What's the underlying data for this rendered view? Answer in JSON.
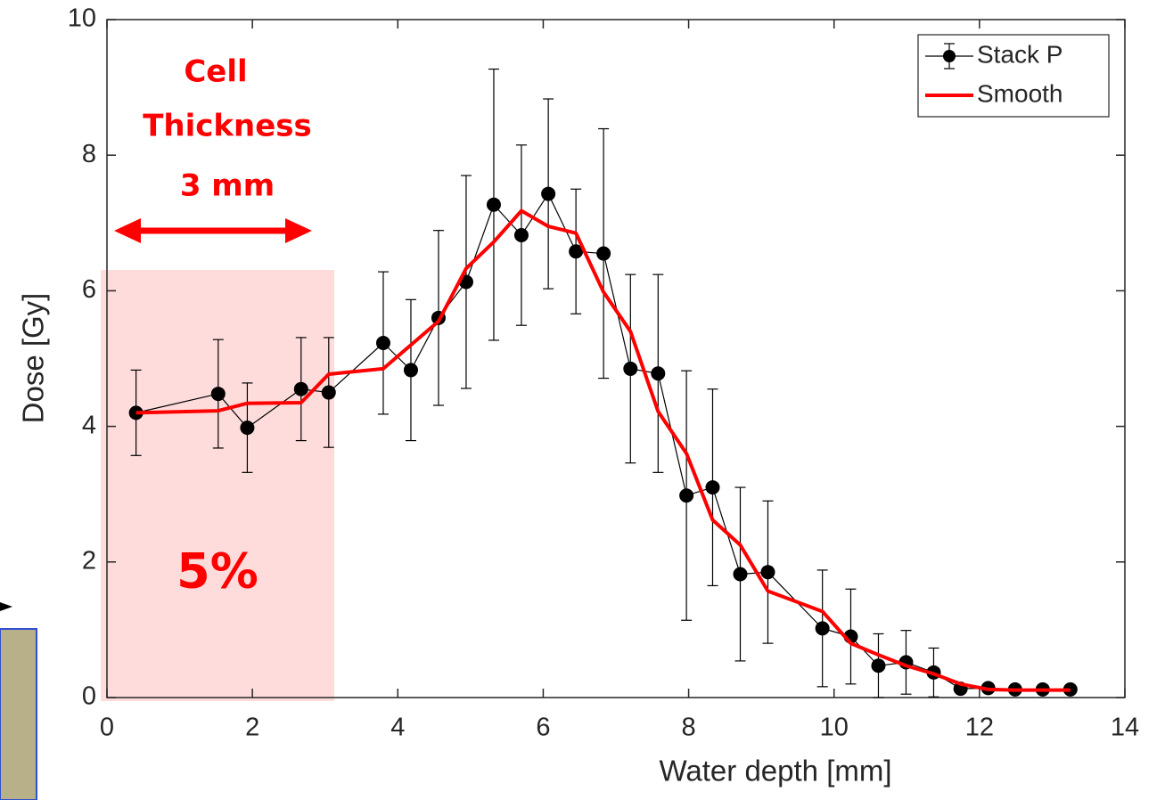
{
  "chart_data": {
    "type": "line",
    "x_label": "Water depth [mm]",
    "y_label": "Dose [Gy]",
    "xlim": [
      0,
      14
    ],
    "xticks": [
      0,
      2,
      4,
      6,
      8,
      10,
      12,
      14
    ],
    "ylim": [
      0,
      10
    ],
    "yticks": [
      0,
      2,
      4,
      6,
      8,
      10
    ],
    "legend": "northeast",
    "annotations": [
      "Cell",
      "Thickness",
      "3 mm",
      "5%"
    ],
    "x": [
      0.4,
      1.53,
      1.93,
      2.67,
      3.05,
      3.8,
      4.18,
      4.56,
      4.94,
      5.32,
      5.7,
      6.07,
      6.45,
      6.83,
      7.2,
      7.58,
      7.97,
      8.33,
      8.71,
      9.09,
      9.84,
      10.23,
      10.61,
      10.99,
      11.37,
      11.74,
      12.12,
      12.49,
      12.87,
      13.25
    ],
    "series": [
      {
        "name": "Stack P",
        "color": "#000000",
        "values": [
          4.2,
          4.48,
          3.98,
          4.55,
          4.5,
          5.23,
          4.83,
          5.6,
          6.13,
          7.27,
          6.82,
          7.43,
          6.58,
          6.55,
          4.85,
          4.78,
          2.98,
          3.1,
          1.82,
          1.85,
          1.02,
          0.9,
          0.47,
          0.52,
          0.37,
          0.13,
          0.14,
          0.12,
          0.12,
          0.12
        ],
        "errors": [
          0.63,
          0.8,
          0.66,
          0.76,
          0.81,
          1.05,
          1.04,
          1.29,
          1.57,
          2.0,
          1.33,
          1.4,
          0.92,
          1.84,
          1.39,
          1.46,
          1.84,
          1.45,
          1.28,
          1.05,
          0.86,
          0.7,
          0.47,
          0.47,
          0.36,
          0.05,
          0.05,
          0.05,
          0.05,
          0.05
        ]
      },
      {
        "name": "Smooth",
        "color": "#ff0000",
        "values": [
          4.2,
          4.23,
          4.34,
          4.35,
          4.77,
          4.85,
          5.2,
          5.55,
          6.33,
          6.72,
          7.18,
          6.95,
          6.85,
          5.98,
          5.4,
          4.22,
          3.6,
          2.62,
          2.25,
          1.57,
          1.27,
          0.8,
          0.63,
          0.47,
          0.35,
          0.2,
          0.12,
          0.11,
          0.11,
          0.11
        ]
      }
    ]
  }
}
